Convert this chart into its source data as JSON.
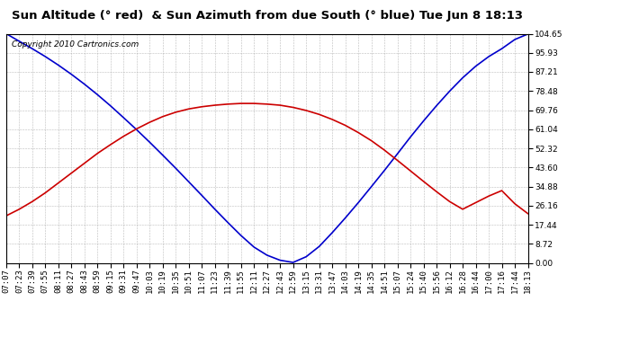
{
  "title": "Sun Altitude (° red)  & Sun Azimuth from due South (° blue) Tue Jun 8 18:13",
  "copyright_text": "Copyright 2010 Cartronics.com",
  "yticks": [
    0.0,
    8.72,
    17.44,
    26.16,
    34.88,
    43.6,
    52.32,
    61.04,
    69.76,
    78.48,
    87.21,
    95.93,
    104.65
  ],
  "ymin": 0.0,
  "ymax": 104.65,
  "xtick_labels": [
    "07:07",
    "07:23",
    "07:39",
    "07:55",
    "08:11",
    "08:27",
    "08:43",
    "08:59",
    "09:15",
    "09:31",
    "09:47",
    "10:03",
    "10:19",
    "10:35",
    "10:51",
    "11:07",
    "11:23",
    "11:39",
    "11:55",
    "12:11",
    "12:27",
    "12:43",
    "12:59",
    "13:15",
    "13:31",
    "13:47",
    "14:03",
    "14:19",
    "14:35",
    "14:51",
    "15:07",
    "15:24",
    "15:40",
    "15:56",
    "16:12",
    "16:28",
    "16:44",
    "17:00",
    "17:16",
    "17:44",
    "18:13"
  ],
  "blue_data": [
    104.65,
    101.2,
    97.8,
    94.2,
    90.3,
    86.1,
    81.6,
    76.8,
    71.7,
    66.3,
    60.8,
    55.1,
    49.2,
    43.2,
    37.0,
    30.8,
    24.5,
    18.4,
    12.5,
    7.2,
    3.5,
    1.2,
    0.2,
    2.8,
    7.5,
    13.8,
    20.5,
    27.5,
    34.8,
    42.2,
    49.8,
    57.5,
    64.8,
    71.8,
    78.4,
    84.5,
    89.8,
    94.2,
    97.8,
    102.0,
    104.5
  ],
  "red_data": [
    21.5,
    24.5,
    28.0,
    32.0,
    36.5,
    41.0,
    45.5,
    50.0,
    54.0,
    57.8,
    61.2,
    64.2,
    66.8,
    68.8,
    70.3,
    71.3,
    72.0,
    72.5,
    72.8,
    72.8,
    72.5,
    72.0,
    71.0,
    69.6,
    67.8,
    65.5,
    62.8,
    59.5,
    55.8,
    51.5,
    46.8,
    42.0,
    37.2,
    32.5,
    28.0,
    24.5,
    27.5,
    30.5,
    33.0,
    27.0,
    22.5
  ],
  "blue_color": "#0000cc",
  "red_color": "#cc0000",
  "bg_color": "#ffffff",
  "grid_color": "#aaaaaa",
  "title_fontsize": 9.5,
  "axis_label_fontsize": 6.5,
  "copyright_fontsize": 6.5,
  "line_width": 1.2
}
